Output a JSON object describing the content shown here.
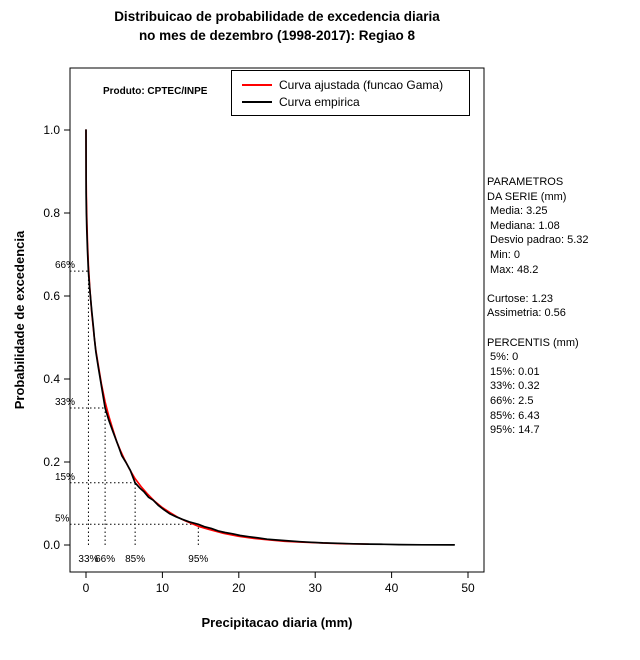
{
  "chart_data": {
    "type": "line",
    "title": "Distribuicao de probabilidade de excedencia diaria no mes de dezembro (1998-2017): Regiao 8",
    "title_lines": [
      "Distribuicao de probabilidade de excedencia diaria",
      "no mes de dezembro (1998-2017): Regiao 8"
    ],
    "xlabel": "Precipitacao diaria (mm)",
    "ylabel": "Probabilidade de excedencia",
    "annotation": "Produto: CPTEC/INPE",
    "xlim": [
      0,
      50
    ],
    "ylim": [
      0,
      1
    ],
    "grid": false,
    "legend_position": "top-right-inside",
    "x_tick_values": [
      0,
      10,
      20,
      30,
      40,
      50
    ],
    "x_tick_labels": [
      "0",
      "10",
      "20",
      "30",
      "40",
      "50"
    ],
    "y_tick_values": [
      0.0,
      0.2,
      0.4,
      0.6,
      0.8,
      1.0
    ],
    "y_tick_labels": [
      "0.0",
      "0.2",
      "0.4",
      "0.6",
      "0.8",
      "1.0"
    ],
    "legend": [
      {
        "label": "Curva ajustada (funcao Gama)",
        "color": "#ff0000"
      },
      {
        "label": "Curva empirica",
        "color": "#000000"
      }
    ],
    "percentile_guides": [
      {
        "exceedance": 0.66,
        "value": 0.32,
        "y_label": "66%",
        "x_label": "33%"
      },
      {
        "exceedance": 0.33,
        "value": 2.5,
        "y_label": "33%",
        "x_label": "66%"
      },
      {
        "exceedance": 0.15,
        "value": 6.43,
        "y_label": "15%",
        "x_label": "85%"
      },
      {
        "exceedance": 0.05,
        "value": 14.7,
        "y_label": "5%",
        "x_label": "95%"
      }
    ],
    "series": [
      {
        "name": "Curva ajustada (funcao Gama)",
        "color": "#ff0000",
        "points": [
          [
            0,
            1.0
          ],
          [
            0.02,
            0.88
          ],
          [
            0.05,
            0.84
          ],
          [
            0.1,
            0.79
          ],
          [
            0.2,
            0.73
          ],
          [
            0.32,
            0.675
          ],
          [
            0.5,
            0.62
          ],
          [
            0.75,
            0.56
          ],
          [
            1.0,
            0.515
          ],
          [
            1.25,
            0.475
          ],
          [
            1.5,
            0.445
          ],
          [
            2.0,
            0.39
          ],
          [
            2.5,
            0.345
          ],
          [
            3.0,
            0.31
          ],
          [
            3.5,
            0.28
          ],
          [
            4.0,
            0.25
          ],
          [
            4.5,
            0.228
          ],
          [
            5.0,
            0.208
          ],
          [
            5.7,
            0.183
          ],
          [
            6.43,
            0.16
          ],
          [
            7.2,
            0.141
          ],
          [
            8.0,
            0.124
          ],
          [
            9.0,
            0.105
          ],
          [
            10,
            0.09
          ],
          [
            11,
            0.078
          ],
          [
            12,
            0.067
          ],
          [
            13,
            0.058
          ],
          [
            14.7,
            0.045
          ],
          [
            16,
            0.038
          ],
          [
            18,
            0.028
          ],
          [
            20,
            0.021
          ],
          [
            22,
            0.016
          ],
          [
            24,
            0.012
          ],
          [
            26,
            0.009
          ],
          [
            28,
            0.007
          ],
          [
            30,
            0.0055
          ],
          [
            32,
            0.004
          ],
          [
            34,
            0.003
          ],
          [
            36,
            0.0025
          ],
          [
            37,
            0.002
          ]
        ]
      },
      {
        "name": "Curva empirica",
        "color": "#000000",
        "points": [
          [
            0,
            1.0
          ],
          [
            0.01,
            0.85
          ],
          [
            0.05,
            0.8
          ],
          [
            0.1,
            0.76
          ],
          [
            0.2,
            0.71
          ],
          [
            0.32,
            0.66
          ],
          [
            0.5,
            0.615
          ],
          [
            0.75,
            0.565
          ],
          [
            1.0,
            0.52
          ],
          [
            1.08,
            0.5
          ],
          [
            1.3,
            0.465
          ],
          [
            1.6,
            0.43
          ],
          [
            2.0,
            0.385
          ],
          [
            2.5,
            0.33
          ],
          [
            3.0,
            0.3
          ],
          [
            3.5,
            0.275
          ],
          [
            4.0,
            0.25
          ],
          [
            4.3,
            0.235
          ],
          [
            4.7,
            0.215
          ],
          [
            5.2,
            0.2
          ],
          [
            5.8,
            0.18
          ],
          [
            6.43,
            0.15
          ],
          [
            7.0,
            0.138
          ],
          [
            7.6,
            0.128
          ],
          [
            8.2,
            0.115
          ],
          [
            8.8,
            0.108
          ],
          [
            9.5,
            0.095
          ],
          [
            10.2,
            0.085
          ],
          [
            11,
            0.075
          ],
          [
            11.8,
            0.068
          ],
          [
            12.6,
            0.062
          ],
          [
            13.5,
            0.056
          ],
          [
            14.7,
            0.05
          ],
          [
            15.5,
            0.044
          ],
          [
            16.4,
            0.04
          ],
          [
            17.3,
            0.034
          ],
          [
            18.2,
            0.03
          ],
          [
            19.2,
            0.027
          ],
          [
            20.2,
            0.023
          ],
          [
            21.3,
            0.02
          ],
          [
            22.5,
            0.017
          ],
          [
            23.7,
            0.014
          ],
          [
            25,
            0.012
          ],
          [
            26.5,
            0.01
          ],
          [
            28,
            0.008
          ],
          [
            29.5,
            0.0065
          ],
          [
            31,
            0.005
          ],
          [
            33,
            0.004
          ],
          [
            35,
            0.003
          ],
          [
            37,
            0.0022
          ],
          [
            39,
            0.0016
          ],
          [
            41,
            0.001
          ],
          [
            44,
            0.0006
          ],
          [
            48.2,
            0.0003
          ]
        ]
      }
    ]
  },
  "stats_panel": {
    "lines": [
      "PARAMETROS",
      "DA SERIE (mm)",
      " Media: 3.25",
      " Mediana: 1.08",
      " Desvio padrao: 5.32",
      " Min: 0",
      " Max: 48.2",
      "",
      "Curtose: 1.23",
      "Assimetria: 0.56",
      "",
      "PERCENTIS (mm)",
      " 5%: 0",
      " 15%: 0.01",
      " 33%: 0.32",
      " 66%: 2.5",
      " 85%: 6.43",
      " 95%: 14.7"
    ]
  }
}
